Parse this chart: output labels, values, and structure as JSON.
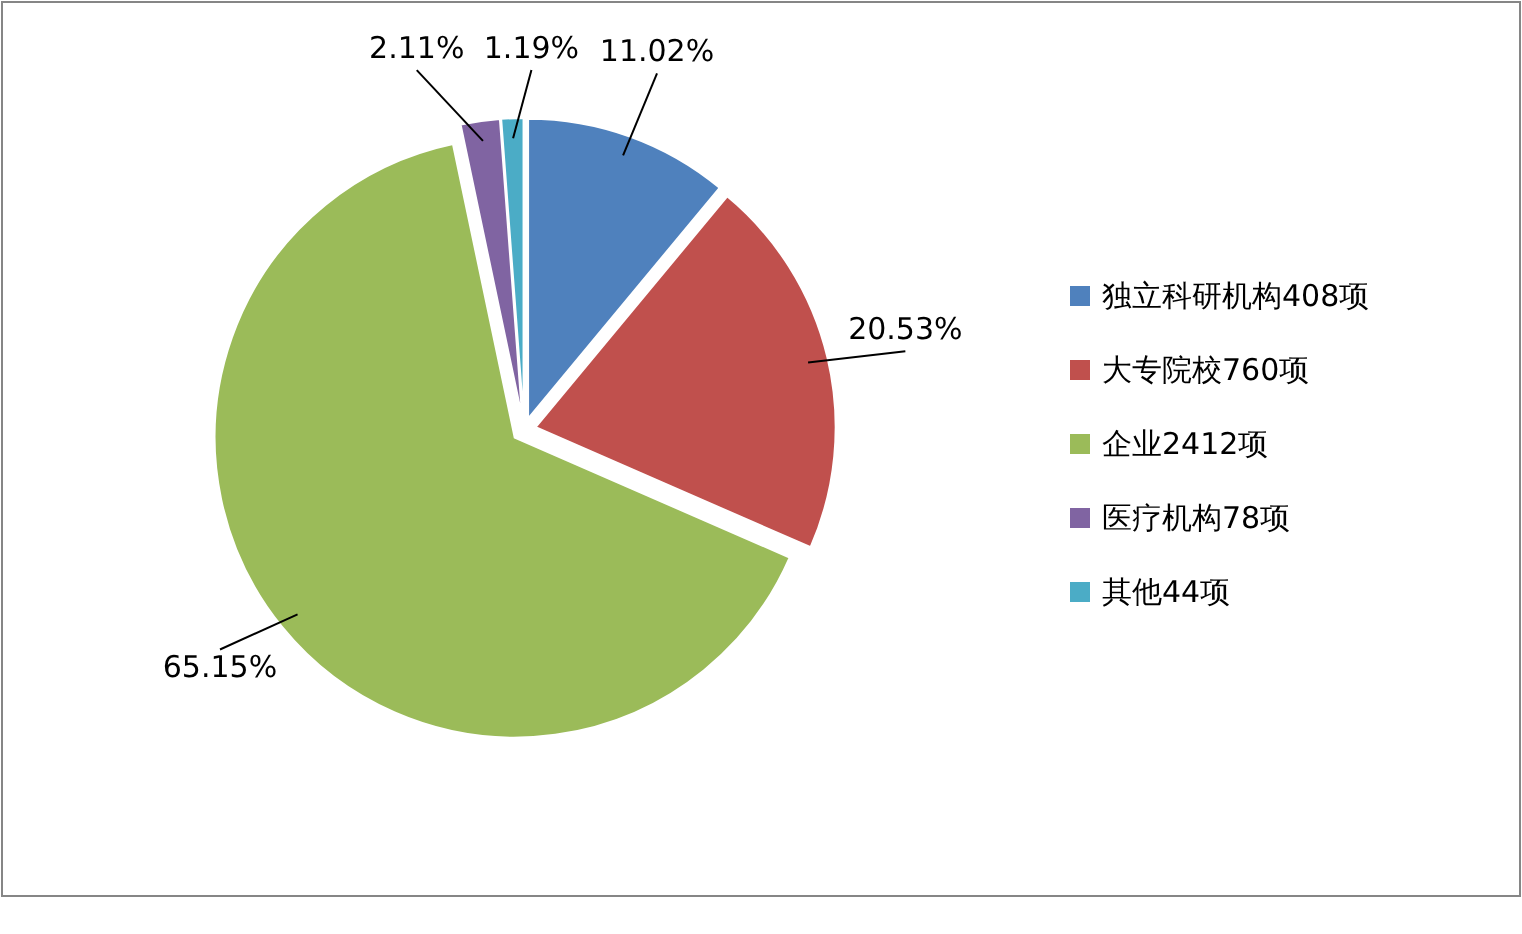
{
  "chart_data": {
    "type": "pie",
    "categories": [
      "独立科研机构408项",
      "大专院校760项",
      "企业2412项",
      "医疗机构78项",
      "其他44项"
    ],
    "values": [
      11.02,
      20.53,
      65.15,
      2.11,
      1.19
    ],
    "colors": [
      "#4f81bd",
      "#c0504d",
      "#9bbb59",
      "#8064a2",
      "#4bacc6"
    ],
    "value_labels": [
      "11.02%",
      "20.53%",
      "65.15%",
      "2.11%",
      "1.19%"
    ],
    "legend": "right"
  }
}
